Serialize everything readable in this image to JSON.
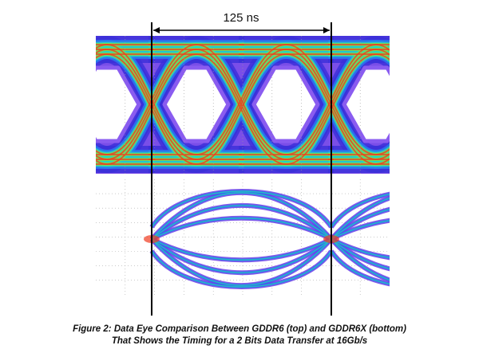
{
  "annotation": {
    "label": "125 ns"
  },
  "caption": {
    "lines": [
      "Figure 2: Data Eye Comparison Between GDDR6 (top) and GDDR6X (bottom)",
      "That Shows the Timing for a 2 Bits Data Transfer at 16Gb/s"
    ]
  }
}
